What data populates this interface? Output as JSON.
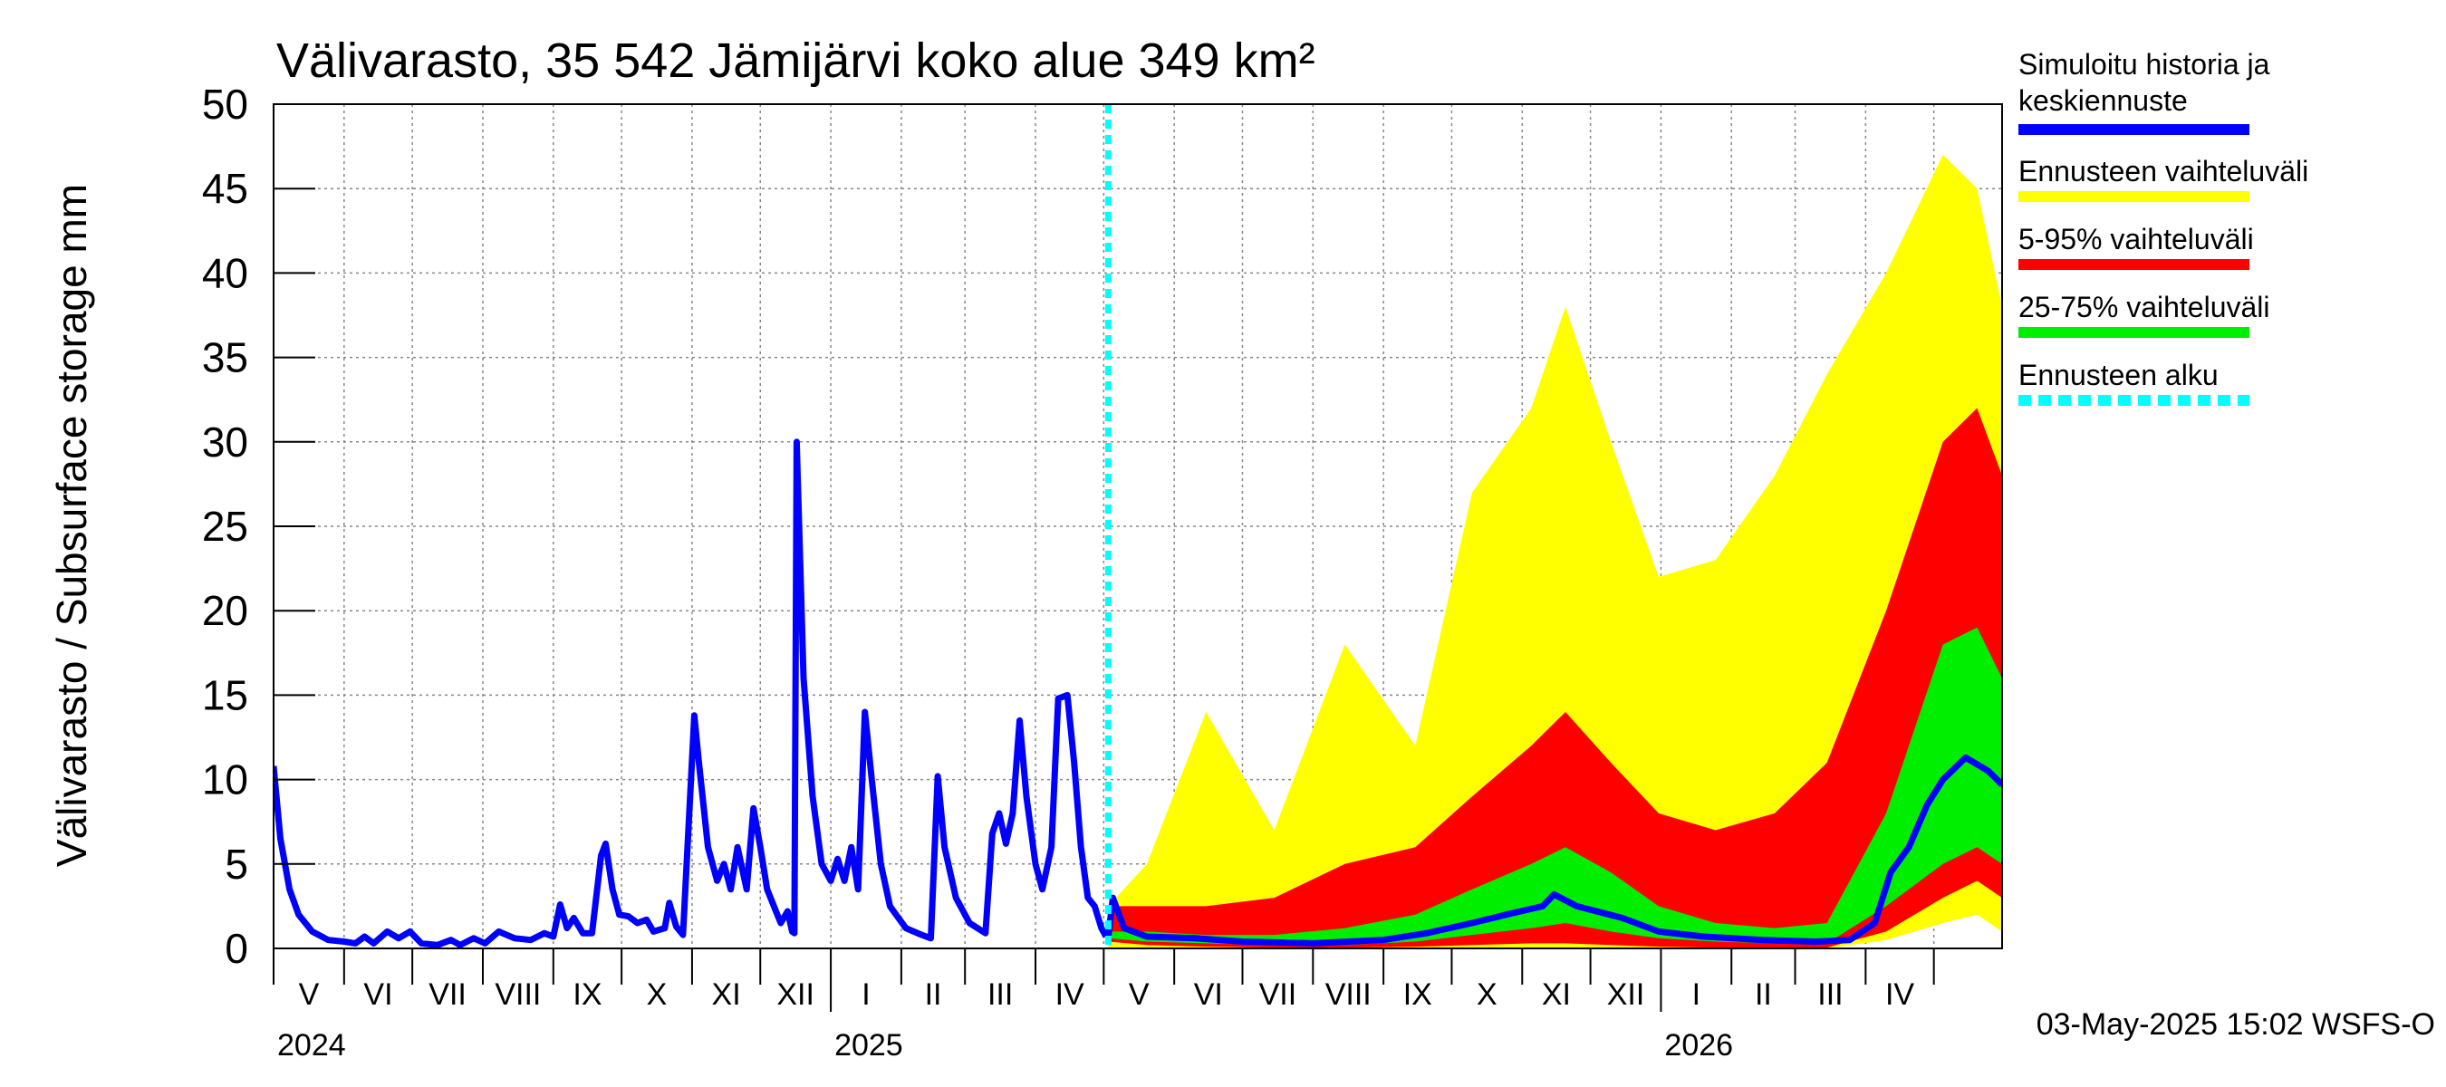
{
  "chart_data": {
    "type": "area",
    "title": "Välivarasto, 35 542 Jämijärvi koko alue 349 km²",
    "ylabel": "Välivarasto / Subsurface storage  mm",
    "ylim": [
      0,
      50
    ],
    "yticks": [
      "0",
      "5",
      "10",
      "15",
      "20",
      "25",
      "30",
      "35",
      "40",
      "45",
      "50"
    ],
    "x_range": [
      "2024-05-01",
      "2026-05-31"
    ],
    "months": [
      "V",
      "VI",
      "VII",
      "VIII",
      "IX",
      "X",
      "XI",
      "XII",
      "I",
      "II",
      "III",
      "IV",
      "V",
      "VI",
      "VII",
      "VIII",
      "IX",
      "X",
      "XI",
      "XII",
      "I",
      "II",
      "III",
      "IV"
    ],
    "years": [
      "2024",
      "2025",
      "2026"
    ],
    "grid": true,
    "legend_position": "right",
    "forecast_start": "2025-05-03",
    "footer": "03-May-2025 15:02 WSFS-O",
    "series": [
      {
        "name": "Simuloitu historia ja keskiennuste",
        "color": "#0000ff"
      },
      {
        "name": "Ennusteen vaihteluväli",
        "color": "#ffff00"
      },
      {
        "name": "5-95% vaihteluväli",
        "color": "#ff0000"
      },
      {
        "name": "25-75% vaihteluväli",
        "color": "#00ee00"
      },
      {
        "name": "Ennusteen alku",
        "color": "#00ffff"
      }
    ],
    "history": [
      [
        "2024-05-01",
        10.8
      ],
      [
        "2024-05-04",
        6.5
      ],
      [
        "2024-05-08",
        3.5
      ],
      [
        "2024-05-12",
        2
      ],
      [
        "2024-05-18",
        1
      ],
      [
        "2024-05-25",
        0.5
      ],
      [
        "2024-06-01",
        0.4
      ],
      [
        "2024-06-06",
        0.3
      ],
      [
        "2024-06-10",
        0.7
      ],
      [
        "2024-06-14",
        0.3
      ],
      [
        "2024-06-20",
        1.0
      ],
      [
        "2024-06-25",
        0.6
      ],
      [
        "2024-06-30",
        1.0
      ],
      [
        "2024-07-05",
        0.3
      ],
      [
        "2024-07-12",
        0.2
      ],
      [
        "2024-07-18",
        0.5
      ],
      [
        "2024-07-22",
        0.2
      ],
      [
        "2024-07-28",
        0.6
      ],
      [
        "2024-08-02",
        0.3
      ],
      [
        "2024-08-08",
        1.0
      ],
      [
        "2024-08-15",
        0.6
      ],
      [
        "2024-08-22",
        0.5
      ],
      [
        "2024-08-28",
        0.9
      ],
      [
        "2024-09-01",
        0.7
      ],
      [
        "2024-09-04",
        2.6
      ],
      [
        "2024-09-07",
        1.2
      ],
      [
        "2024-09-10",
        1.8
      ],
      [
        "2024-09-14",
        0.9
      ],
      [
        "2024-09-18",
        0.9
      ],
      [
        "2024-09-22",
        5.5
      ],
      [
        "2024-09-24",
        6.2
      ],
      [
        "2024-09-27",
        3.5
      ],
      [
        "2024-09-30",
        2.0
      ],
      [
        "2024-10-04",
        1.9
      ],
      [
        "2024-10-08",
        1.5
      ],
      [
        "2024-10-12",
        1.7
      ],
      [
        "2024-10-15",
        1.0
      ],
      [
        "2024-10-20",
        1.2
      ],
      [
        "2024-10-22",
        2.7
      ],
      [
        "2024-10-25",
        1.3
      ],
      [
        "2024-10-28",
        0.8
      ],
      [
        "2024-11-02",
        13.8
      ],
      [
        "2024-11-04",
        11
      ],
      [
        "2024-11-08",
        6
      ],
      [
        "2024-11-12",
        4
      ],
      [
        "2024-11-15",
        5
      ],
      [
        "2024-11-18",
        3.5
      ],
      [
        "2024-11-21",
        6
      ],
      [
        "2024-11-25",
        3.5
      ],
      [
        "2024-11-28",
        8.3
      ],
      [
        "2024-12-01",
        6
      ],
      [
        "2024-12-04",
        3.5
      ],
      [
        "2024-12-07",
        2.5
      ],
      [
        "2024-12-10",
        1.5
      ],
      [
        "2024-12-13",
        2.2
      ],
      [
        "2024-12-15",
        1.0
      ],
      [
        "2024-12-16",
        0.9
      ],
      [
        "2024-12-17",
        30.0
      ],
      [
        "2024-12-20",
        16
      ],
      [
        "2024-12-24",
        9
      ],
      [
        "2024-12-28",
        5
      ],
      [
        "2025-01-01",
        4
      ],
      [
        "2025-01-04",
        5.3
      ],
      [
        "2025-01-07",
        4
      ],
      [
        "2025-01-10",
        6
      ],
      [
        "2025-01-13",
        3.5
      ],
      [
        "2025-01-16",
        14
      ],
      [
        "2025-01-19",
        10
      ],
      [
        "2025-01-23",
        5
      ],
      [
        "2025-01-27",
        2.5
      ],
      [
        "2025-02-03",
        1.2
      ],
      [
        "2025-02-10",
        0.8
      ],
      [
        "2025-02-14",
        0.6
      ],
      [
        "2025-02-17",
        10.2
      ],
      [
        "2025-02-20",
        6
      ],
      [
        "2025-02-25",
        3
      ],
      [
        "2025-03-03",
        1.5
      ],
      [
        "2025-03-10",
        0.9
      ],
      [
        "2025-03-13",
        6.8
      ],
      [
        "2025-03-16",
        8
      ],
      [
        "2025-03-19",
        6.2
      ],
      [
        "2025-03-22",
        8
      ],
      [
        "2025-03-25",
        13.5
      ],
      [
        "2025-03-28",
        9
      ],
      [
        "2025-04-01",
        5
      ],
      [
        "2025-04-04",
        3.5
      ],
      [
        "2025-04-08",
        6
      ],
      [
        "2025-04-11",
        14.8
      ],
      [
        "2025-04-15",
        15
      ],
      [
        "2025-04-18",
        11
      ],
      [
        "2025-04-21",
        6
      ],
      [
        "2025-04-24",
        3
      ],
      [
        "2025-04-27",
        2.5
      ],
      [
        "2025-04-30",
        1.2
      ],
      [
        "2025-05-02",
        0.7
      ]
    ],
    "forecast_median": [
      [
        "2025-05-03",
        0.7
      ],
      [
        "2025-05-05",
        3.0
      ],
      [
        "2025-05-10",
        1.2
      ],
      [
        "2025-05-20",
        0.7
      ],
      [
        "2025-06-10",
        0.6
      ],
      [
        "2025-07-01",
        0.4
      ],
      [
        "2025-08-01",
        0.3
      ],
      [
        "2025-09-01",
        0.5
      ],
      [
        "2025-09-20",
        0.9
      ],
      [
        "2025-10-10",
        1.5
      ],
      [
        "2025-10-25",
        2.0
      ],
      [
        "2025-11-10",
        2.5
      ],
      [
        "2025-11-15",
        3.2
      ],
      [
        "2025-11-25",
        2.5
      ],
      [
        "2025-12-15",
        1.8
      ],
      [
        "2025-12-31",
        1.0
      ],
      [
        "2026-01-20",
        0.7
      ],
      [
        "2026-02-15",
        0.5
      ],
      [
        "2026-03-10",
        0.4
      ],
      [
        "2026-03-25",
        0.5
      ],
      [
        "2026-04-05",
        1.5
      ],
      [
        "2026-04-12",
        4.5
      ],
      [
        "2026-04-20",
        6
      ],
      [
        "2026-04-28",
        8.5
      ],
      [
        "2026-05-05",
        10
      ],
      [
        "2026-05-15",
        11.3
      ],
      [
        "2026-05-25",
        10.5
      ],
      [
        "2026-05-31",
        9.7
      ]
    ],
    "forecast_ranges": [
      {
        "date": "2025-05-03",
        "min": 0,
        "max": 2.5,
        "p05": 0.4,
        "p95": 2.5,
        "p25": 0.6,
        "p75": 1.0
      },
      {
        "date": "2025-05-20",
        "min": 0,
        "max": 5,
        "p05": 0.2,
        "p95": 2.5,
        "p25": 0.4,
        "p75": 1.0
      },
      {
        "date": "2025-06-15",
        "min": 0,
        "max": 14,
        "p05": 0.1,
        "p95": 2.5,
        "p25": 0.3,
        "p75": 0.8
      },
      {
        "date": "2025-07-15",
        "min": 0,
        "max": 7,
        "p05": 0.05,
        "p95": 3,
        "p25": 0.2,
        "p75": 0.8
      },
      {
        "date": "2025-08-15",
        "min": 0,
        "max": 18,
        "p05": 0.05,
        "p95": 5,
        "p25": 0.2,
        "p75": 1.2
      },
      {
        "date": "2025-09-15",
        "min": 0,
        "max": 12,
        "p05": 0.1,
        "p95": 6,
        "p25": 0.4,
        "p75": 2
      },
      {
        "date": "2025-10-10",
        "min": 0,
        "max": 27,
        "p05": 0.2,
        "p95": 9,
        "p25": 0.8,
        "p75": 3.5
      },
      {
        "date": "2025-11-05",
        "min": 0,
        "max": 32,
        "p05": 0.3,
        "p95": 12,
        "p25": 1.2,
        "p75": 5
      },
      {
        "date": "2025-11-20",
        "min": 0,
        "max": 38,
        "p05": 0.3,
        "p95": 14,
        "p25": 1.5,
        "p75": 6
      },
      {
        "date": "2025-12-10",
        "min": 0,
        "max": 30,
        "p05": 0.2,
        "p95": 11,
        "p25": 1.0,
        "p75": 4.5
      },
      {
        "date": "2025-12-31",
        "min": 0,
        "max": 22,
        "p05": 0.1,
        "p95": 8,
        "p25": 0.6,
        "p75": 2.5
      },
      {
        "date": "2026-01-25",
        "min": 0,
        "max": 23,
        "p05": 0.05,
        "p95": 7,
        "p25": 0.4,
        "p75": 1.5
      },
      {
        "date": "2026-02-20",
        "min": 0,
        "max": 28,
        "p05": 0.05,
        "p95": 8,
        "p25": 0.3,
        "p75": 1.2
      },
      {
        "date": "2026-03-15",
        "min": 0,
        "max": 34,
        "p05": 0.05,
        "p95": 11,
        "p25": 0.3,
        "p75": 1.5
      },
      {
        "date": "2026-04-10",
        "min": 0.5,
        "max": 40,
        "p05": 1,
        "p95": 20,
        "p25": 2.5,
        "p75": 8
      },
      {
        "date": "2026-05-05",
        "min": 1.5,
        "max": 47,
        "p05": 3,
        "p95": 30,
        "p25": 5,
        "p75": 18
      },
      {
        "date": "2026-05-20",
        "min": 2,
        "max": 45,
        "p05": 4,
        "p95": 32,
        "p25": 6,
        "p75": 19
      },
      {
        "date": "2026-05-31",
        "min": 1,
        "max": 38,
        "p05": 3,
        "p95": 28,
        "p25": 5,
        "p75": 16
      }
    ]
  }
}
